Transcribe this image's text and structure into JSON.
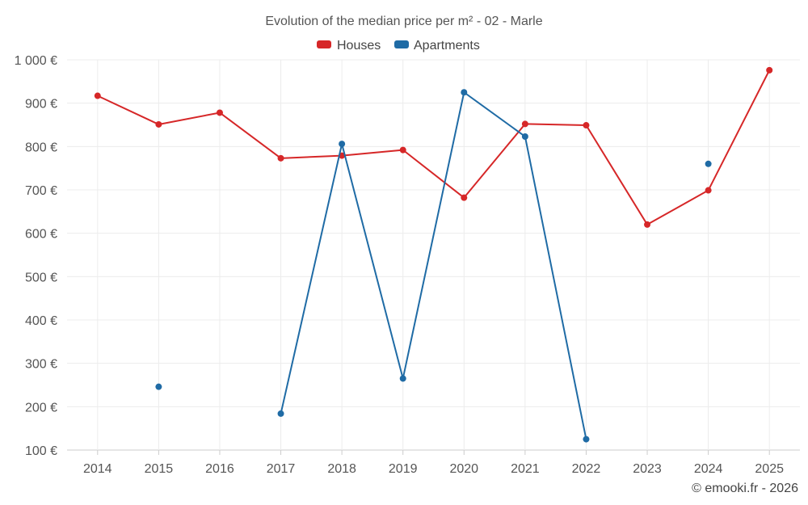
{
  "chart_data": {
    "type": "line",
    "title": "Evolution of the median price per m² - 02 - Marle",
    "categories": [
      "2014",
      "2015",
      "2016",
      "2017",
      "2018",
      "2019",
      "2020",
      "2021",
      "2022",
      "2023",
      "2024",
      "2025"
    ],
    "yticks": [
      "100 €",
      "200 €",
      "300 €",
      "400 €",
      "500 €",
      "600 €",
      "700 €",
      "800 €",
      "900 €",
      "1 000 €"
    ],
    "ylim": [
      100,
      1000
    ],
    "grid": true,
    "legend_position": "top-center",
    "series": [
      {
        "name": "Houses",
        "color": "#d62728",
        "values": [
          917,
          851,
          878,
          773,
          779,
          792,
          682,
          852,
          849,
          620,
          699,
          976
        ]
      },
      {
        "name": "Apartments",
        "color": "#1f6ba5",
        "values": [
          null,
          246,
          null,
          184,
          806,
          265,
          925,
          823,
          125,
          null,
          760,
          null
        ]
      }
    ]
  },
  "credit": "© emooki.fr - 2026"
}
